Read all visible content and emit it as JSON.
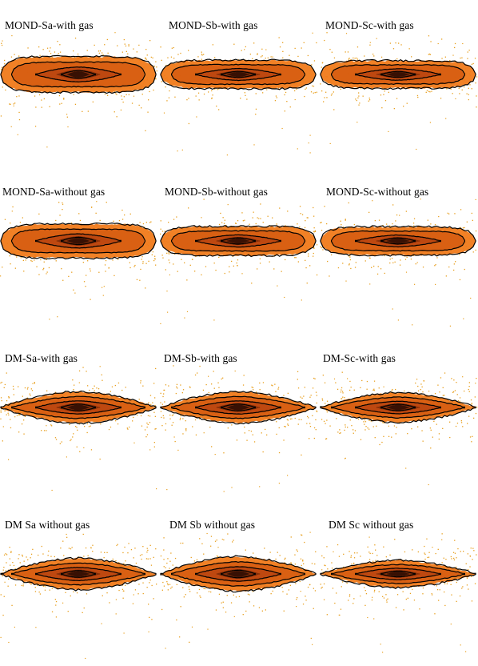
{
  "figure": {
    "panels": [
      {
        "id": "mond-sa-with-gas",
        "label": "MOND-Sa-with gas",
        "thick": 1.0,
        "boxy": true
      },
      {
        "id": "mond-sb-with-gas",
        "label": "MOND-Sb-with gas",
        "thick": 0.55,
        "boxy": true
      },
      {
        "id": "mond-sc-with-gas",
        "label": "MOND-Sc-with gas",
        "thick": 0.5,
        "boxy": true
      },
      {
        "id": "mond-sa-without-gas",
        "label": "MOND-Sa-without gas",
        "thick": 0.9,
        "boxy": true
      },
      {
        "id": "mond-sb-without-gas",
        "label": "MOND-Sb-without gas",
        "thick": 0.6,
        "boxy": true
      },
      {
        "id": "mond-sc-without-gas",
        "label": "MOND-Sc-without gas",
        "thick": 0.55,
        "boxy": true
      },
      {
        "id": "dm-sa-with-gas",
        "label": "DM-Sa-with gas",
        "thick": 0.75,
        "boxy": false
      },
      {
        "id": "dm-sb-with-gas",
        "label": "DM-Sb-with gas",
        "thick": 0.75,
        "boxy": false
      },
      {
        "id": "dm-sc-with-gas",
        "label": "DM-Sc-with gas",
        "thick": 0.65,
        "boxy": false
      },
      {
        "id": "dm-sa-without-gas",
        "label": "DM Sa without gas",
        "thick": 0.75,
        "boxy": false
      },
      {
        "id": "dm-sb-without-gas",
        "label": "DM Sb without gas",
        "thick": 0.95,
        "boxy": false
      },
      {
        "id": "dm-sc-without-gas",
        "label": "DM Sc without gas",
        "thick": 0.5,
        "boxy": false
      }
    ],
    "colors": {
      "outer_dots": "#e8a020",
      "disk_outer": "#f07a1a",
      "disk_mid": "#d55a10",
      "disk_inner": "#7a2a08",
      "core": "#2a0a02",
      "contour": "#000000"
    }
  }
}
